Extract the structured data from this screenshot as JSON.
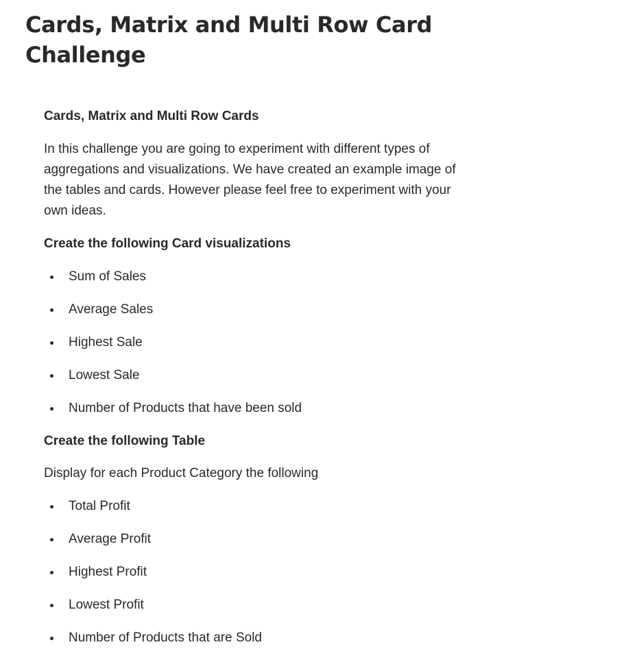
{
  "article": {
    "title": "Cards, Matrix and Multi Row Card Challenge",
    "sections": {
      "intro": {
        "heading": "Cards, Matrix and Multi Row Cards",
        "paragraph": "In this challenge you are going to experiment with different types of aggregations and visualizations. We have created an example image of the tables and cards. However please feel free to experiment with your own ideas."
      },
      "cards": {
        "heading": "Create the following Card visualizations",
        "items": [
          "Sum of Sales",
          "Average Sales",
          "Highest Sale",
          "Lowest Sale",
          "Number of Products that have been sold"
        ]
      },
      "table": {
        "heading": "Create the following Table",
        "paragraph": "Display for each Product Category the following",
        "items": [
          "Total Profit",
          "Average Profit",
          "Highest Profit",
          "Lowest Profit",
          "Number of Products that are Sold"
        ]
      }
    }
  }
}
